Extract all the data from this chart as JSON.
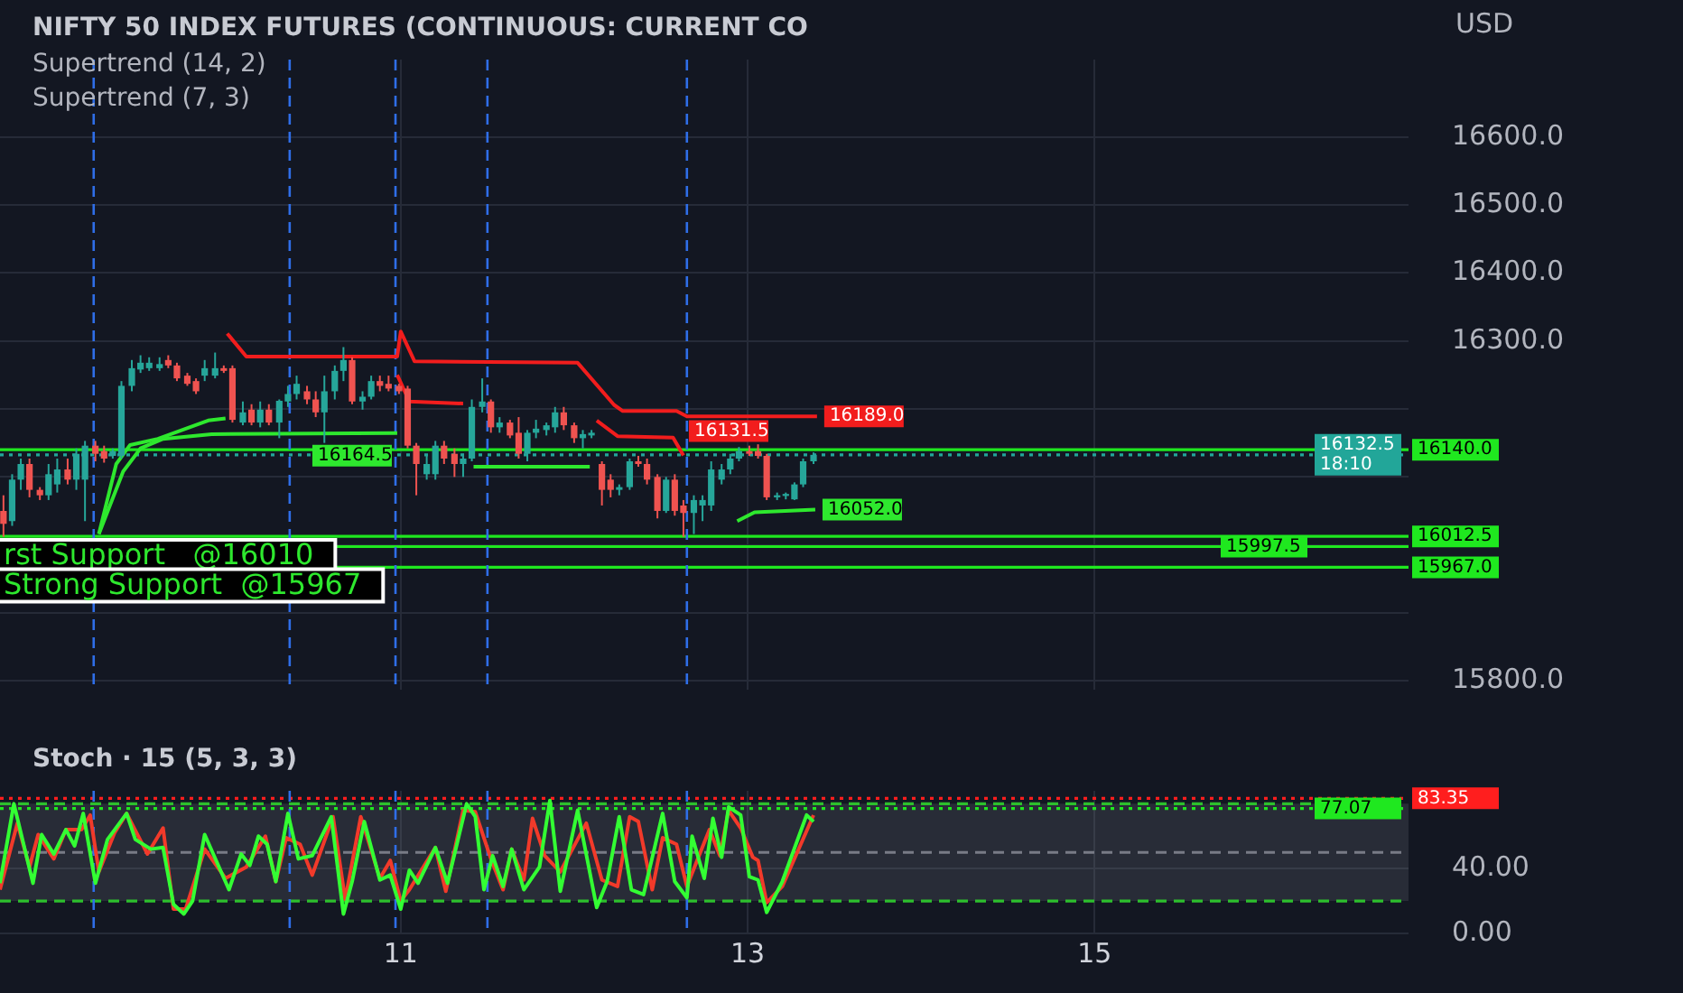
{
  "chart_data": [
    {
      "type": "candlestick",
      "title": "NIFTY 50 INDEX FUTURES (CONTINUOUS: CURRENT CO",
      "ylabel": "USD",
      "annotations": [
        "Supertrend (14, 2)",
        "Supertrend (7, 3)",
        {
          "text": "rst Support   @16010",
          "y": 16010
        },
        {
          "text": "Strong Support  @15967",
          "y": 15967
        }
      ],
      "x": [
        8.71,
        8.76,
        8.81,
        8.86,
        8.92,
        8.97,
        9.02,
        9.08,
        9.13,
        9.18,
        9.24,
        9.29,
        9.34,
        9.39,
        9.45,
        9.5,
        9.55,
        9.61,
        9.66,
        9.71,
        9.77,
        9.82,
        9.87,
        9.93,
        9.98,
        10.03,
        10.09,
        10.14,
        10.19,
        10.24,
        10.3,
        10.35,
        10.4,
        10.46,
        10.51,
        10.56,
        10.62,
        10.67,
        10.72,
        10.78,
        10.83,
        10.88,
        10.93,
        10.99,
        11.04,
        11.09,
        11.15,
        11.2,
        11.25,
        11.31,
        11.36,
        11.41,
        11.47,
        11.52,
        11.57,
        11.63,
        11.68,
        11.73,
        11.78,
        11.84,
        11.89,
        11.94,
        12.0,
        12.05,
        12.1,
        12.16,
        12.21,
        12.26,
        12.32,
        12.37,
        12.42,
        12.48,
        12.53,
        12.58,
        12.63,
        12.69,
        12.74,
        12.79,
        12.85,
        12.9,
        12.95,
        13.01,
        13.06,
        13.11,
        13.17,
        13.22,
        13.27,
        13.32,
        13.38
      ],
      "ohlc": [
        [
          16050,
          16073,
          16012,
          16031
        ],
        [
          16035,
          16104,
          16028,
          16096
        ],
        [
          16096,
          16127,
          16081,
          16119
        ],
        [
          16119,
          16127,
          16070,
          16081
        ],
        [
          16081,
          16085,
          16066,
          16073
        ],
        [
          16073,
          16119,
          16066,
          16104
        ],
        [
          16089,
          16127,
          16077,
          16111
        ],
        [
          16111,
          16127,
          16089,
          16096
        ],
        [
          16096,
          16142,
          16081,
          16134
        ],
        [
          16096,
          16153,
          16035,
          16146
        ],
        [
          16146,
          16153,
          16123,
          16134
        ],
        [
          16138,
          16146,
          16121,
          16127
        ],
        [
          16131,
          16142,
          16127,
          16138
        ],
        [
          16131,
          16241,
          16127,
          16234
        ],
        [
          16234,
          16272,
          16226,
          16260
        ],
        [
          16258,
          16279,
          16253,
          16268
        ],
        [
          16260,
          16276,
          16256,
          16268
        ],
        [
          16260,
          16276,
          16256,
          16266
        ],
        [
          16272,
          16279,
          16260,
          16264
        ],
        [
          16264,
          16268,
          16241,
          16245
        ],
        [
          16249,
          16253,
          16234,
          16237
        ],
        [
          16241,
          16245,
          16222,
          16226
        ],
        [
          16249,
          16272,
          16241,
          16260
        ],
        [
          16249,
          16283,
          16245,
          16260
        ],
        [
          16260,
          16264,
          16253,
          16256
        ],
        [
          16260,
          16264,
          16180,
          16184
        ],
        [
          16180,
          16211,
          16176,
          16195
        ],
        [
          16199,
          16207,
          16176,
          16180
        ],
        [
          16180,
          16211,
          16173,
          16199
        ],
        [
          16199,
          16207,
          16176,
          16180
        ],
        [
          16180,
          16214,
          16157,
          16212
        ],
        [
          16211,
          16234,
          16203,
          16222
        ],
        [
          16222,
          16249,
          16214,
          16237
        ],
        [
          16226,
          16234,
          16207,
          16214
        ],
        [
          16214,
          16226,
          16188,
          16195
        ],
        [
          16195,
          16249,
          16150,
          16226
        ],
        [
          16226,
          16264,
          16214,
          16256
        ],
        [
          16256,
          16291,
          16241,
          16272
        ],
        [
          16272,
          16276,
          16207,
          16211
        ],
        [
          16211,
          16226,
          16199,
          16218
        ],
        [
          16218,
          16249,
          16214,
          16241
        ],
        [
          16241,
          16249,
          16226,
          16234
        ],
        [
          16237,
          16249,
          16226,
          16230
        ],
        [
          16234,
          16237,
          16222,
          16226
        ],
        [
          16230,
          16234,
          16142,
          16146
        ],
        [
          16146,
          16150,
          16073,
          16119
        ],
        [
          16104,
          16131,
          16096,
          16119
        ],
        [
          16104,
          16153,
          16096,
          16146
        ],
        [
          16146,
          16153,
          16119,
          16127
        ],
        [
          16134,
          16142,
          16100,
          16119
        ],
        [
          16119,
          16134,
          16100,
          16127
        ],
        [
          16127,
          16214,
          16123,
          16203
        ],
        [
          16203,
          16245,
          16195,
          16211
        ],
        [
          16211,
          16214,
          16165,
          16173
        ],
        [
          16173,
          16188,
          16165,
          16180
        ],
        [
          16180,
          16184,
          16157,
          16161
        ],
        [
          16165,
          16188,
          16127,
          16134
        ],
        [
          16134,
          16169,
          16123,
          16165
        ],
        [
          16165,
          16184,
          16157,
          16171
        ],
        [
          16169,
          16180,
          16161,
          16176
        ],
        [
          16173,
          16203,
          16165,
          16195
        ],
        [
          16195,
          16203,
          16169,
          16176
        ],
        [
          16176,
          16180,
          16150,
          16157
        ],
        [
          16157,
          16169,
          16142,
          16163
        ],
        [
          16161,
          16169,
          16157,
          16165
        ],
        [
          16119,
          16123,
          16058,
          16081
        ],
        [
          16096,
          16104,
          16070,
          16081
        ],
        [
          16081,
          16089,
          16073,
          16085
        ],
        [
          16085,
          16127,
          16081,
          16123
        ],
        [
          16123,
          16131,
          16115,
          16119
        ],
        [
          16119,
          16127,
          16089,
          16096
        ],
        [
          16100,
          16104,
          16039,
          16050
        ],
        [
          16050,
          16100,
          16047,
          16096
        ],
        [
          16096,
          16104,
          16043,
          16050
        ],
        [
          16058,
          16066,
          16012,
          16047
        ],
        [
          16047,
          16073,
          16016,
          16066
        ],
        [
          16058,
          16073,
          16035,
          16066
        ],
        [
          16058,
          16123,
          16050,
          16111
        ],
        [
          16096,
          16119,
          16089,
          16111
        ],
        [
          16111,
          16134,
          16104,
          16127
        ],
        [
          16127,
          16144,
          16123,
          16138
        ],
        [
          16138,
          16146,
          16131,
          16134
        ],
        [
          16138,
          16148,
          16127,
          16131
        ],
        [
          16131,
          16134,
          16066,
          16070
        ],
        [
          16070,
          16077,
          16066,
          16073
        ],
        [
          16072,
          16077,
          16067,
          16075
        ],
        [
          16067,
          16092,
          16066,
          16089
        ],
        [
          16089,
          16127,
          16085,
          16123
        ],
        [
          16123,
          16136,
          16119,
          16132.5
        ]
      ],
      "series": [
        {
          "type": "line",
          "color": "#2ee82e",
          "x": [
            9.26,
            9.36,
            9.44,
            9.6,
            9.89,
            9.99
          ],
          "values": [
            16016,
            16119,
            16147,
            16156,
            16183,
            16186
          ]
        },
        {
          "type": "line",
          "color": "#2ee82e",
          "x": [
            9.26,
            9.4,
            9.5,
            9.63,
            9.91,
            10.98
          ],
          "values": [
            16016,
            16108,
            16142,
            16156,
            16163,
            16164.5
          ],
          "value_labels": [
            null,
            null,
            null,
            null,
            null,
            "16164.5"
          ]
        },
        {
          "type": "line",
          "color": "#f21d1d",
          "x": [
            10.0,
            10.11,
            10.98,
            11.0,
            11.08,
            12.02,
            12.23,
            12.28,
            12.59,
            12.65,
            13.4
          ],
          "values": [
            16311,
            16277,
            16277,
            16314,
            16270,
            16268,
            16206,
            16197,
            16197,
            16189,
            16189
          ],
          "value_labels": [
            null,
            null,
            null,
            null,
            null,
            null,
            null,
            null,
            null,
            null,
            "16189.0"
          ]
        },
        {
          "type": "line",
          "color": "#f21d1d",
          "x": [
            10.98,
            11.05,
            11.36,
            11.8,
            12.13,
            12.25,
            12.57,
            12.63
          ],
          "values": [
            16250,
            16211,
            16208,
            null,
            16183,
            16160,
            16158,
            16131.5
          ],
          "value_labels": [
            null,
            null,
            null,
            null,
            null,
            null,
            null,
            "16131.5"
          ]
        },
        {
          "type": "line",
          "color": "#2ee82e",
          "x": [
            11.42,
            12.09
          ],
          "values": [
            16115,
            16115
          ]
        },
        {
          "type": "line",
          "color": "#2ee82e",
          "x": [
            12.94,
            13.04,
            13.39
          ],
          "values": [
            16035,
            16048,
            16052
          ],
          "value_labels": [
            null,
            null,
            "16052.0"
          ]
        }
      ],
      "xlim": [
        8.69,
        16.81
      ],
      "xticks": [
        11,
        13,
        15
      ],
      "tick_labels": "y",
      "ylim": [
        15787,
        16714
      ],
      "yticks": [
        {
          "value": 15800,
          "label": "15800.0"
        },
        {
          "value": 15900,
          "label": null
        },
        {
          "value": 16000,
          "label": null
        },
        {
          "value": 16100,
          "label": null
        },
        {
          "value": 16200,
          "label": null
        },
        {
          "value": 16300,
          "label": "16300.0"
        },
        {
          "value": 16400,
          "label": "16400.0"
        },
        {
          "value": 16500,
          "label": "16500.0"
        },
        {
          "value": 16600,
          "label": "16600.0"
        }
      ],
      "ref_lines": [
        {
          "axis": "y",
          "value": 16140,
          "label": "16140.0",
          "color": "#1fe81f",
          "line_style": "solid"
        },
        {
          "axis": "y",
          "value": 16132.5,
          "label": "16132.5\n18:10",
          "color": "#22a699",
          "line_style": "dotted"
        },
        {
          "axis": "y",
          "value": 16012.5,
          "label": "16012.5",
          "color": "#1fe81f",
          "line_style": "solid"
        },
        {
          "axis": "y",
          "value": 15997.5,
          "label": "15997.5",
          "color": "#1fe81f",
          "line_style": "solid"
        },
        {
          "axis": "y",
          "value": 15967,
          "label": "15967.0",
          "color": "#1fe81f",
          "line_style": "solid"
        },
        {
          "axis": "x",
          "value": 9.23,
          "color": "#2f6ee8",
          "line_style": "dashed"
        },
        {
          "axis": "x",
          "value": 10.36,
          "color": "#2f6ee8",
          "line_style": "dashed"
        },
        {
          "axis": "x",
          "value": 10.97,
          "color": "#2f6ee8",
          "line_style": "dashed"
        },
        {
          "axis": "x",
          "value": 11.5,
          "color": "#2f6ee8",
          "line_style": "dashed"
        },
        {
          "axis": "x",
          "value": 12.65,
          "color": "#2f6ee8",
          "line_style": "dashed"
        }
      ],
      "grid": true
    },
    {
      "type": "line",
      "title": "Stoch · 15 (5, 3, 3)",
      "series": [
        {
          "color": "#33ff33",
          "x": [
            8.69,
            8.77,
            8.88,
            8.93,
            9.0,
            9.07,
            9.12,
            9.17,
            9.24,
            9.31,
            9.42,
            9.47,
            9.56,
            9.63,
            9.69,
            9.75,
            9.8,
            9.87,
            9.94,
            10.01,
            10.08,
            10.13,
            10.18,
            10.23,
            10.28,
            10.35,
            10.41,
            10.49,
            10.6,
            10.67,
            10.72,
            10.79,
            10.88,
            10.94,
            11.0,
            11.05,
            11.1,
            11.2,
            11.27,
            11.38,
            11.43,
            11.48,
            11.53,
            11.59,
            11.64,
            11.71,
            11.8,
            11.86,
            11.92,
            12.02,
            12.13,
            12.19,
            12.26,
            12.33,
            12.4,
            12.51,
            12.58,
            12.65,
            12.68,
            12.75,
            12.8,
            12.85,
            12.89,
            12.96,
            13.01,
            13.06,
            13.11,
            13.2,
            13.34,
            13.38
          ],
          "values": [
            31,
            80,
            31,
            61,
            49,
            64,
            54,
            74,
            31,
            58,
            74,
            58,
            52,
            53,
            18,
            12,
            20,
            61,
            44,
            27,
            49,
            42,
            60,
            55,
            32,
            74,
            46,
            48,
            72,
            12,
            32,
            69,
            33,
            36,
            15,
            39,
            31,
            53,
            31,
            80,
            72,
            27,
            48,
            29,
            52,
            27,
            41,
            82,
            26,
            76,
            16,
            32,
            72,
            27,
            24,
            74,
            32,
            22,
            60,
            34,
            71,
            47,
            78,
            73,
            35,
            33,
            13,
            32,
            73,
            69
          ]
        },
        {
          "color": "#f23a2a",
          "x": [
            8.69,
            8.79,
            8.86,
            8.91,
            9.0,
            9.07,
            9.16,
            9.21,
            9.26,
            9.35,
            9.42,
            9.54,
            9.63,
            9.69,
            9.76,
            9.87,
            9.99,
            10.11,
            10.22,
            10.28,
            10.34,
            10.42,
            10.49,
            10.61,
            10.68,
            10.77,
            10.88,
            10.94,
            11.0,
            11.05,
            11.2,
            11.26,
            11.36,
            11.43,
            11.52,
            11.59,
            11.64,
            11.71,
            11.76,
            11.83,
            11.92,
            12.07,
            12.16,
            12.25,
            12.32,
            12.37,
            12.45,
            12.51,
            12.59,
            12.65,
            12.72,
            12.78,
            12.84,
            12.89,
            12.96,
            13.03,
            13.06,
            13.11,
            13.2,
            13.38
          ],
          "values": [
            27,
            68,
            41,
            61,
            46,
            64,
            64,
            73,
            38,
            62,
            74,
            49,
            65,
            15,
            15,
            52,
            34,
            41,
            60,
            32,
            59,
            55,
            36,
            72,
            21,
            72,
            34,
            45,
            20,
            27,
            53,
            26,
            76,
            75,
            46,
            27,
            52,
            33,
            71,
            48,
            38,
            68,
            33,
            29,
            72,
            69,
            27,
            59,
            55,
            29,
            48,
            64,
            48,
            76,
            65,
            47,
            45,
            19,
            29,
            73
          ]
        }
      ],
      "xlim": [
        8.69,
        16.81
      ],
      "xticks": [
        11,
        13,
        15
      ],
      "ylim": [
        0,
        88
      ],
      "yticks": [
        {
          "value": 0,
          "label": "0.00"
        },
        {
          "value": 40,
          "label": "40.00"
        }
      ],
      "bands": [
        {
          "axis": "y",
          "from": 20,
          "to": 80,
          "color": "#787b86"
        }
      ],
      "ref_lines": [
        {
          "axis": "y",
          "value": 80,
          "color": "#2dbf2d",
          "line_style": "dashed"
        },
        {
          "axis": "y",
          "value": 50,
          "color": "#787b86",
          "line_style": "dashed"
        },
        {
          "axis": "y",
          "value": 20,
          "color": "#2dbf2d",
          "line_style": "dashed"
        },
        {
          "axis": "y",
          "value": 83.35,
          "label": "83.35",
          "color": "#ff1e1e",
          "line_style": "dotted"
        },
        {
          "axis": "y",
          "value": 77.07,
          "label": "77.07",
          "color": "#1fe81f",
          "line_style": "dotted"
        },
        {
          "axis": "x",
          "value": 9.23,
          "color": "#2f6ee8",
          "line_style": "dashed"
        },
        {
          "axis": "x",
          "value": 10.36,
          "color": "#2f6ee8",
          "line_style": "dashed"
        },
        {
          "axis": "x",
          "value": 10.97,
          "color": "#2f6ee8",
          "line_style": "dashed"
        },
        {
          "axis": "x",
          "value": 11.5,
          "color": "#2f6ee8",
          "line_style": "dashed"
        },
        {
          "axis": "x",
          "value": 12.65,
          "color": "#2f6ee8",
          "line_style": "dashed"
        }
      ],
      "grid": true
    }
  ]
}
